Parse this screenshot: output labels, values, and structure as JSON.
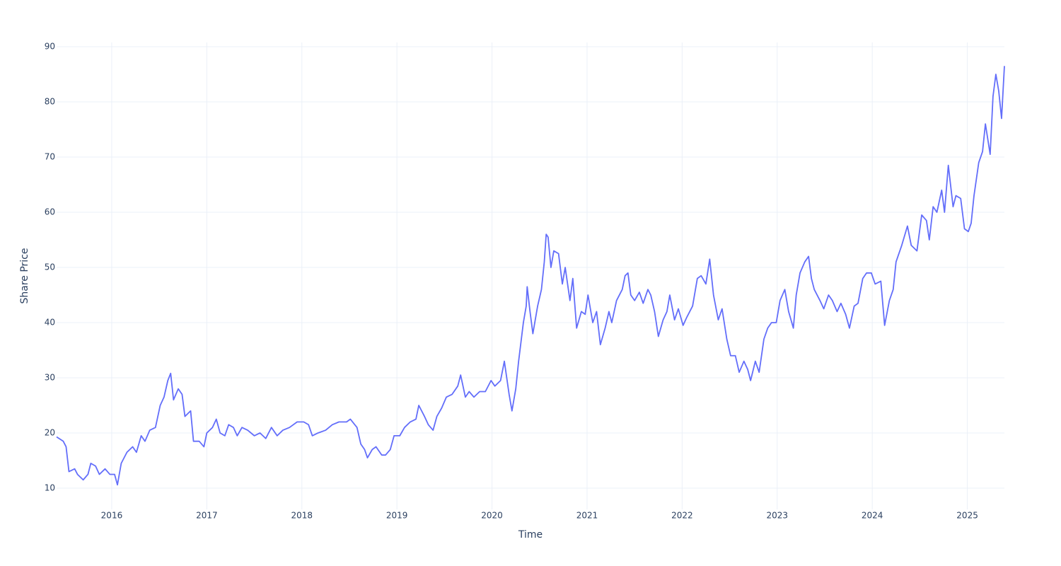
{
  "chart_data": {
    "type": "line",
    "x_label": "Time",
    "y_label": "Share Price",
    "xlim": [
      2015.42,
      2025.39
    ],
    "xticks": [
      2016,
      2017,
      2018,
      2019,
      2020,
      2021,
      2022,
      2023,
      2024,
      2025
    ],
    "ylim": [
      6.15,
      90.77
    ],
    "yticks": [
      10,
      20,
      30,
      40,
      50,
      60,
      70,
      80,
      90
    ],
    "grid": true,
    "series": [
      {
        "color": "#636efa",
        "x": [
          2015.42,
          2015.49,
          2015.52,
          2015.55,
          2015.61,
          2015.64,
          2015.7,
          2015.75,
          2015.78,
          2015.83,
          2015.87,
          2015.93,
          2015.98,
          2016.03,
          2016.06,
          2016.1,
          2016.16,
          2016.22,
          2016.26,
          2016.31,
          2016.35,
          2016.4,
          2016.46,
          2016.51,
          2016.55,
          2016.59,
          2016.62,
          2016.65,
          2016.7,
          2016.74,
          2016.77,
          2016.83,
          2016.86,
          2016.92,
          2016.97,
          2017.0,
          2017.06,
          2017.1,
          2017.14,
          2017.19,
          2017.23,
          2017.28,
          2017.32,
          2017.37,
          2017.43,
          2017.5,
          2017.56,
          2017.62,
          2017.68,
          2017.74,
          2017.8,
          2017.87,
          2017.95,
          2018.02,
          2018.07,
          2018.11,
          2018.17,
          2018.25,
          2018.32,
          2018.39,
          2018.47,
          2018.51,
          2018.58,
          2018.62,
          2018.66,
          2018.69,
          2018.74,
          2018.78,
          2018.84,
          2018.88,
          2018.93,
          2018.97,
          2019.03,
          2019.08,
          2019.14,
          2019.2,
          2019.23,
          2019.29,
          2019.33,
          2019.38,
          2019.42,
          2019.47,
          2019.52,
          2019.58,
          2019.64,
          2019.67,
          2019.72,
          2019.76,
          2019.81,
          2019.87,
          2019.93,
          2019.99,
          2020.03,
          2020.09,
          2020.13,
          2020.18,
          2020.21,
          2020.25,
          2020.28,
          2020.33,
          2020.36,
          2020.37,
          2020.4,
          2020.43,
          2020.48,
          2020.52,
          2020.55,
          2020.57,
          2020.59,
          2020.62,
          2020.65,
          2020.7,
          2020.74,
          2020.77,
          2020.82,
          2020.85,
          2020.89,
          2020.94,
          2020.98,
          2021.01,
          2021.06,
          2021.1,
          2021.14,
          2021.19,
          2021.23,
          2021.26,
          2021.31,
          2021.37,
          2021.4,
          2021.43,
          2021.46,
          2021.5,
          2021.55,
          2021.59,
          2021.64,
          2021.67,
          2021.71,
          2021.75,
          2021.8,
          2021.84,
          2021.87,
          2021.92,
          2021.96,
          2022.01,
          2022.05,
          2022.11,
          2022.16,
          2022.2,
          2022.25,
          2022.29,
          2022.33,
          2022.38,
          2022.42,
          2022.47,
          2022.51,
          2022.56,
          2022.6,
          2022.65,
          2022.69,
          2022.72,
          2022.77,
          2022.81,
          2022.86,
          2022.9,
          2022.94,
          2022.99,
          2023.03,
          2023.08,
          2023.12,
          2023.17,
          2023.2,
          2023.24,
          2023.29,
          2023.33,
          2023.36,
          2023.39,
          2023.45,
          2023.49,
          2023.54,
          2023.58,
          2023.63,
          2023.67,
          2023.72,
          2023.76,
          2023.81,
          2023.85,
          2023.9,
          2023.94,
          2023.99,
          2024.03,
          2024.09,
          2024.13,
          2024.18,
          2024.22,
          2024.25,
          2024.31,
          2024.37,
          2024.41,
          2024.47,
          2024.52,
          2024.57,
          2024.6,
          2024.64,
          2024.68,
          2024.73,
          2024.76,
          2024.8,
          2024.85,
          2024.88,
          2024.93,
          2024.97,
          2025.01,
          2025.04,
          2025.07,
          2025.12,
          2025.16,
          2025.19,
          2025.24,
          2025.27,
          2025.3,
          2025.33,
          2025.36,
          2025.39
        ],
        "values": [
          19.3,
          18.5,
          17.5,
          13,
          13.5,
          12.5,
          11.5,
          12.5,
          14.5,
          14,
          12.5,
          13.5,
          12.5,
          12.5,
          10.6,
          14.5,
          16.5,
          17.5,
          16.5,
          19.5,
          18.5,
          20.5,
          21,
          25,
          26.5,
          29.5,
          30.8,
          26,
          28,
          27,
          23,
          24,
          18.5,
          18.5,
          17.5,
          20,
          21,
          22.5,
          20,
          19.5,
          21.5,
          21,
          19.5,
          21,
          20.5,
          19.5,
          20,
          19,
          21,
          19.5,
          20.5,
          21,
          22,
          22,
          21.5,
          19.5,
          20,
          20.5,
          21.5,
          22,
          22,
          22.5,
          21,
          18,
          17,
          15.5,
          17,
          17.5,
          16,
          16,
          17,
          19.5,
          19.5,
          21,
          22,
          22.5,
          25,
          23,
          21.5,
          20.5,
          23,
          24.5,
          26.5,
          27,
          28.5,
          30.5,
          26.5,
          27.5,
          26.5,
          27.5,
          27.5,
          29.5,
          28.5,
          29.5,
          33,
          27,
          24,
          28,
          33,
          40,
          43,
          46.5,
          42,
          38,
          43,
          46,
          51,
          56,
          55.5,
          50,
          53,
          52.5,
          47,
          50,
          44,
          48,
          39,
          42,
          41.5,
          45,
          40,
          42,
          36,
          39,
          42,
          40,
          44,
          46,
          48.5,
          49,
          45,
          44,
          45.5,
          43.5,
          46,
          45,
          42,
          37.5,
          40.5,
          42,
          45,
          40.5,
          42.5,
          39.5,
          41,
          43,
          48,
          48.5,
          47,
          51.5,
          45,
          40.5,
          42.5,
          37,
          34,
          34,
          31,
          33,
          31.5,
          29.5,
          33,
          31,
          37,
          39,
          40,
          40,
          44,
          46,
          42,
          39,
          45,
          49,
          51,
          52,
          48,
          46,
          44,
          42.5,
          45,
          44,
          42,
          43.5,
          41.5,
          39,
          43,
          43.5,
          48,
          49,
          49,
          47,
          47.5,
          39.5,
          44,
          46,
          51,
          54,
          57.5,
          54,
          53,
          59.5,
          58.5,
          55,
          61,
          60,
          64,
          60,
          68.5,
          61,
          63,
          62.5,
          57,
          56.5,
          58,
          63,
          69,
          71,
          76,
          70.5,
          81,
          85,
          82,
          77,
          86.5
        ]
      }
    ]
  }
}
